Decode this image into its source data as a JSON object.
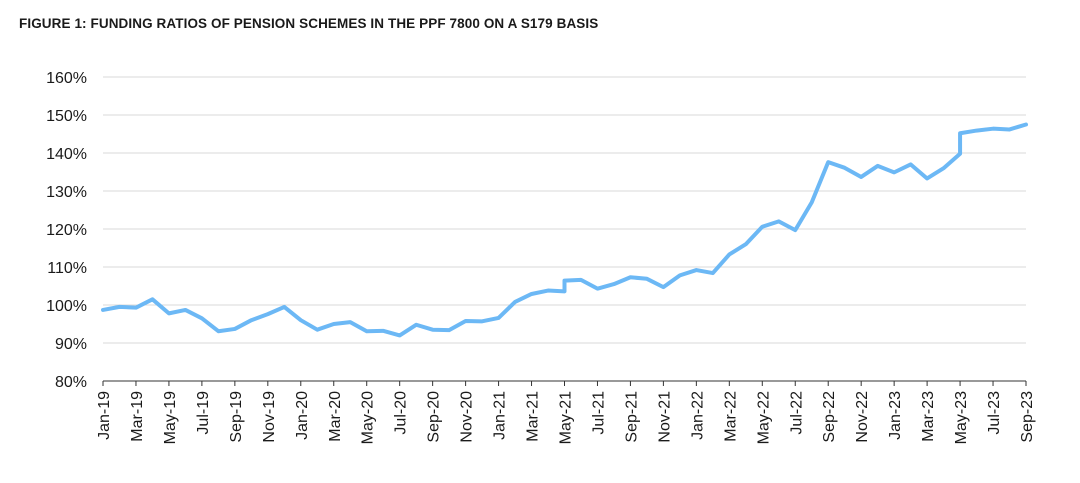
{
  "figure_title": "FIGURE 1: FUNDING RATIOS OF PENSION SCHEMES IN THE PPF 7800 ON A S179 BASIS",
  "colors": {
    "line": "#6cb8f5",
    "grid": "#d9d9d9",
    "axis": "#333333"
  },
  "chart_data": {
    "type": "line",
    "title": "FIGURE 1: FUNDING RATIOS OF PENSION SCHEMES IN THE PPF 7800 ON A S179 BASIS",
    "xlabel": "",
    "ylabel": "",
    "ylim": [
      80,
      160
    ],
    "yticks": [
      80,
      90,
      100,
      110,
      120,
      130,
      140,
      150,
      160
    ],
    "ytick_labels": [
      "80%",
      "90%",
      "100%",
      "110%",
      "120%",
      "130%",
      "140%",
      "150%",
      "160%"
    ],
    "xtick_labels": [
      "Jan-19",
      "Mar-19",
      "May-19",
      "Jul-19",
      "Sep-19",
      "Nov-19",
      "Jan-20",
      "Mar-20",
      "May-20",
      "Jul-20",
      "Sep-20",
      "Nov-20",
      "Jan-21",
      "Mar-21",
      "May-21",
      "Jul-21",
      "Sep-21",
      "Nov-21",
      "Jan-22",
      "Mar-22",
      "May-22",
      "Jul-22",
      "Sep-22",
      "Nov-22",
      "Jan-23",
      "Mar-23",
      "May-23",
      "Jul-23",
      "Sep-23"
    ],
    "grid": true,
    "series": [
      {
        "points": [
          [
            "Jan-19",
            98.7
          ],
          [
            "Feb-19",
            99.5
          ],
          [
            "Mar-19",
            99.3
          ],
          [
            "Apr-19",
            101.5
          ],
          [
            "May-19",
            97.8
          ],
          [
            "Jun-19",
            98.7
          ],
          [
            "Jul-19",
            96.5
          ],
          [
            "Aug-19",
            93.1
          ],
          [
            "Sep-19",
            93.7
          ],
          [
            "Oct-19",
            96.0
          ],
          [
            "Nov-19",
            97.6
          ],
          [
            "Dec-19",
            99.5
          ],
          [
            "Jan-20",
            96.0
          ],
          [
            "Feb-20",
            93.5
          ],
          [
            "Mar-20",
            95.0
          ],
          [
            "Apr-20",
            95.5
          ],
          [
            "May-20",
            93.1
          ],
          [
            "Jun-20",
            93.2
          ],
          [
            "Jul-20",
            92.0
          ],
          [
            "Aug-20",
            94.8
          ],
          [
            "Sep-20",
            93.5
          ],
          [
            "Oct-20",
            93.4
          ],
          [
            "Nov-20",
            95.8
          ],
          [
            "Dec-20",
            95.7
          ],
          [
            "Jan-21",
            96.6
          ],
          [
            "Feb-21",
            100.8
          ],
          [
            "Mar-21",
            102.9
          ],
          [
            "Apr-21",
            103.8
          ],
          [
            "May-21",
            103.6
          ],
          [
            "May-21",
            106.4
          ],
          [
            "Jun-21",
            106.6
          ],
          [
            "Jul-21",
            104.3
          ],
          [
            "Aug-21",
            105.5
          ],
          [
            "Sep-21",
            107.3
          ],
          [
            "Oct-21",
            106.9
          ],
          [
            "Nov-21",
            104.7
          ],
          [
            "Dec-21",
            107.8
          ],
          [
            "Jan-22",
            109.2
          ],
          [
            "Feb-22",
            108.4
          ],
          [
            "Mar-22",
            113.3
          ],
          [
            "Apr-22",
            116.0
          ],
          [
            "May-22",
            120.6
          ],
          [
            "Jun-22",
            122.0
          ],
          [
            "Jul-22",
            119.7
          ],
          [
            "Aug-22",
            127.0
          ],
          [
            "Sep-22",
            137.6
          ],
          [
            "Oct-22",
            136.1
          ],
          [
            "Nov-22",
            133.7
          ],
          [
            "Dec-22",
            136.6
          ],
          [
            "Jan-23",
            134.9
          ],
          [
            "Feb-23",
            137.0
          ],
          [
            "Mar-23",
            133.3
          ],
          [
            "Apr-23",
            136.0
          ],
          [
            "May-23",
            139.8
          ],
          [
            "May-23",
            145.2
          ],
          [
            "Jun-23",
            145.9
          ],
          [
            "Jul-23",
            146.4
          ],
          [
            "Aug-23",
            146.2
          ],
          [
            "Sep-23",
            147.5
          ]
        ]
      }
    ]
  }
}
